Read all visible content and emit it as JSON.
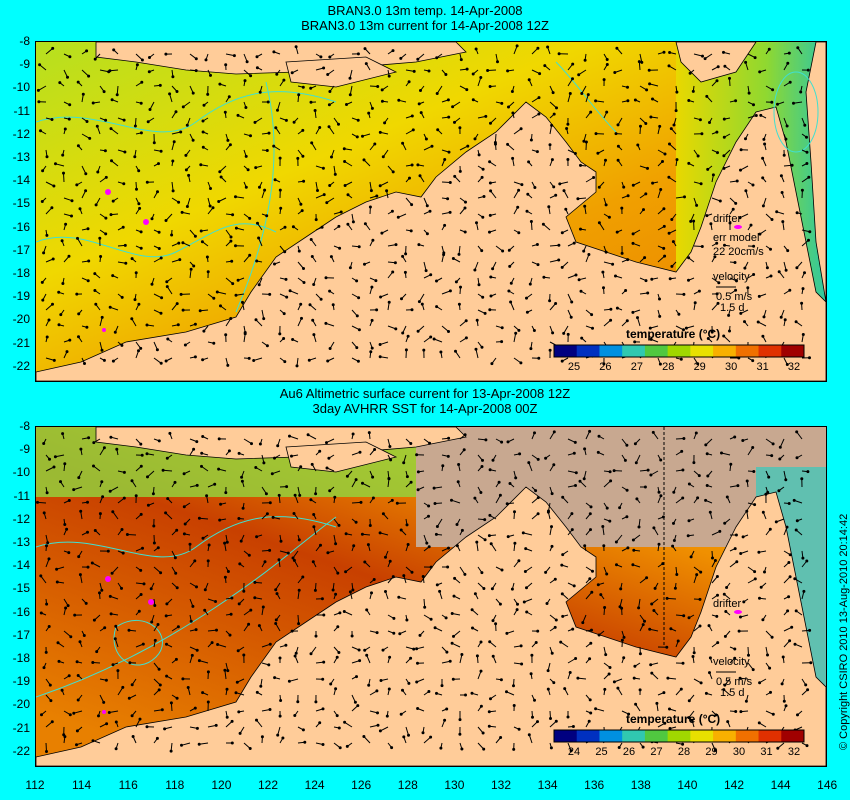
{
  "top_panel": {
    "title_line1": "BRAN3.0 13m temp. 14-Apr-2008",
    "title_line2": "BRAN3.0 13m current for 14-Apr-2008 12Z",
    "drifter_label": "drifter",
    "err_model_label": "err model",
    "err_model_value": "22 20cm/s",
    "velocity_label": "velocity",
    "velocity_value": "0.5 m/s",
    "velocity_time": "1.5 d",
    "legend_title": "temperature (°C)",
    "colorbar_ticks": [
      "25",
      "26",
      "27",
      "28",
      "29",
      "30",
      "31",
      "32"
    ]
  },
  "bottom_panel": {
    "title_line1": "Au6 Altimetric surface current for 13-Apr-2008 12Z",
    "title_line2": "3day AVHRR SST for 14-Apr-2008 00Z",
    "drifter_label": "drifter",
    "velocity_label": "velocity",
    "velocity_value": "0.5 m/s",
    "velocity_time": "1.5 d",
    "legend_title": "temperature (°C)",
    "colorbar_ticks": [
      "24",
      "25",
      "26",
      "27",
      "28",
      "29",
      "30",
      "31",
      "32"
    ]
  },
  "y_axis_labels": [
    "-8",
    "-9",
    "-10",
    "-11",
    "-12",
    "-13",
    "-14",
    "-15",
    "-16",
    "-17",
    "-18",
    "-19",
    "-20",
    "-21",
    "-22"
  ],
  "x_axis_labels": [
    "112",
    "114",
    "116",
    "118",
    "120",
    "122",
    "124",
    "126",
    "128",
    "130",
    "132",
    "134",
    "136",
    "138",
    "140",
    "142",
    "144",
    "146"
  ],
  "copyright": "© Copyright CSIRO 2010  13-Aug-2010 20:14:42",
  "colors": {
    "background": "#00ffff",
    "land": "#ffcc99",
    "cloud_mask": "#c8a890",
    "drifter": "#ff00ff",
    "contour": "#40e0d0"
  }
}
